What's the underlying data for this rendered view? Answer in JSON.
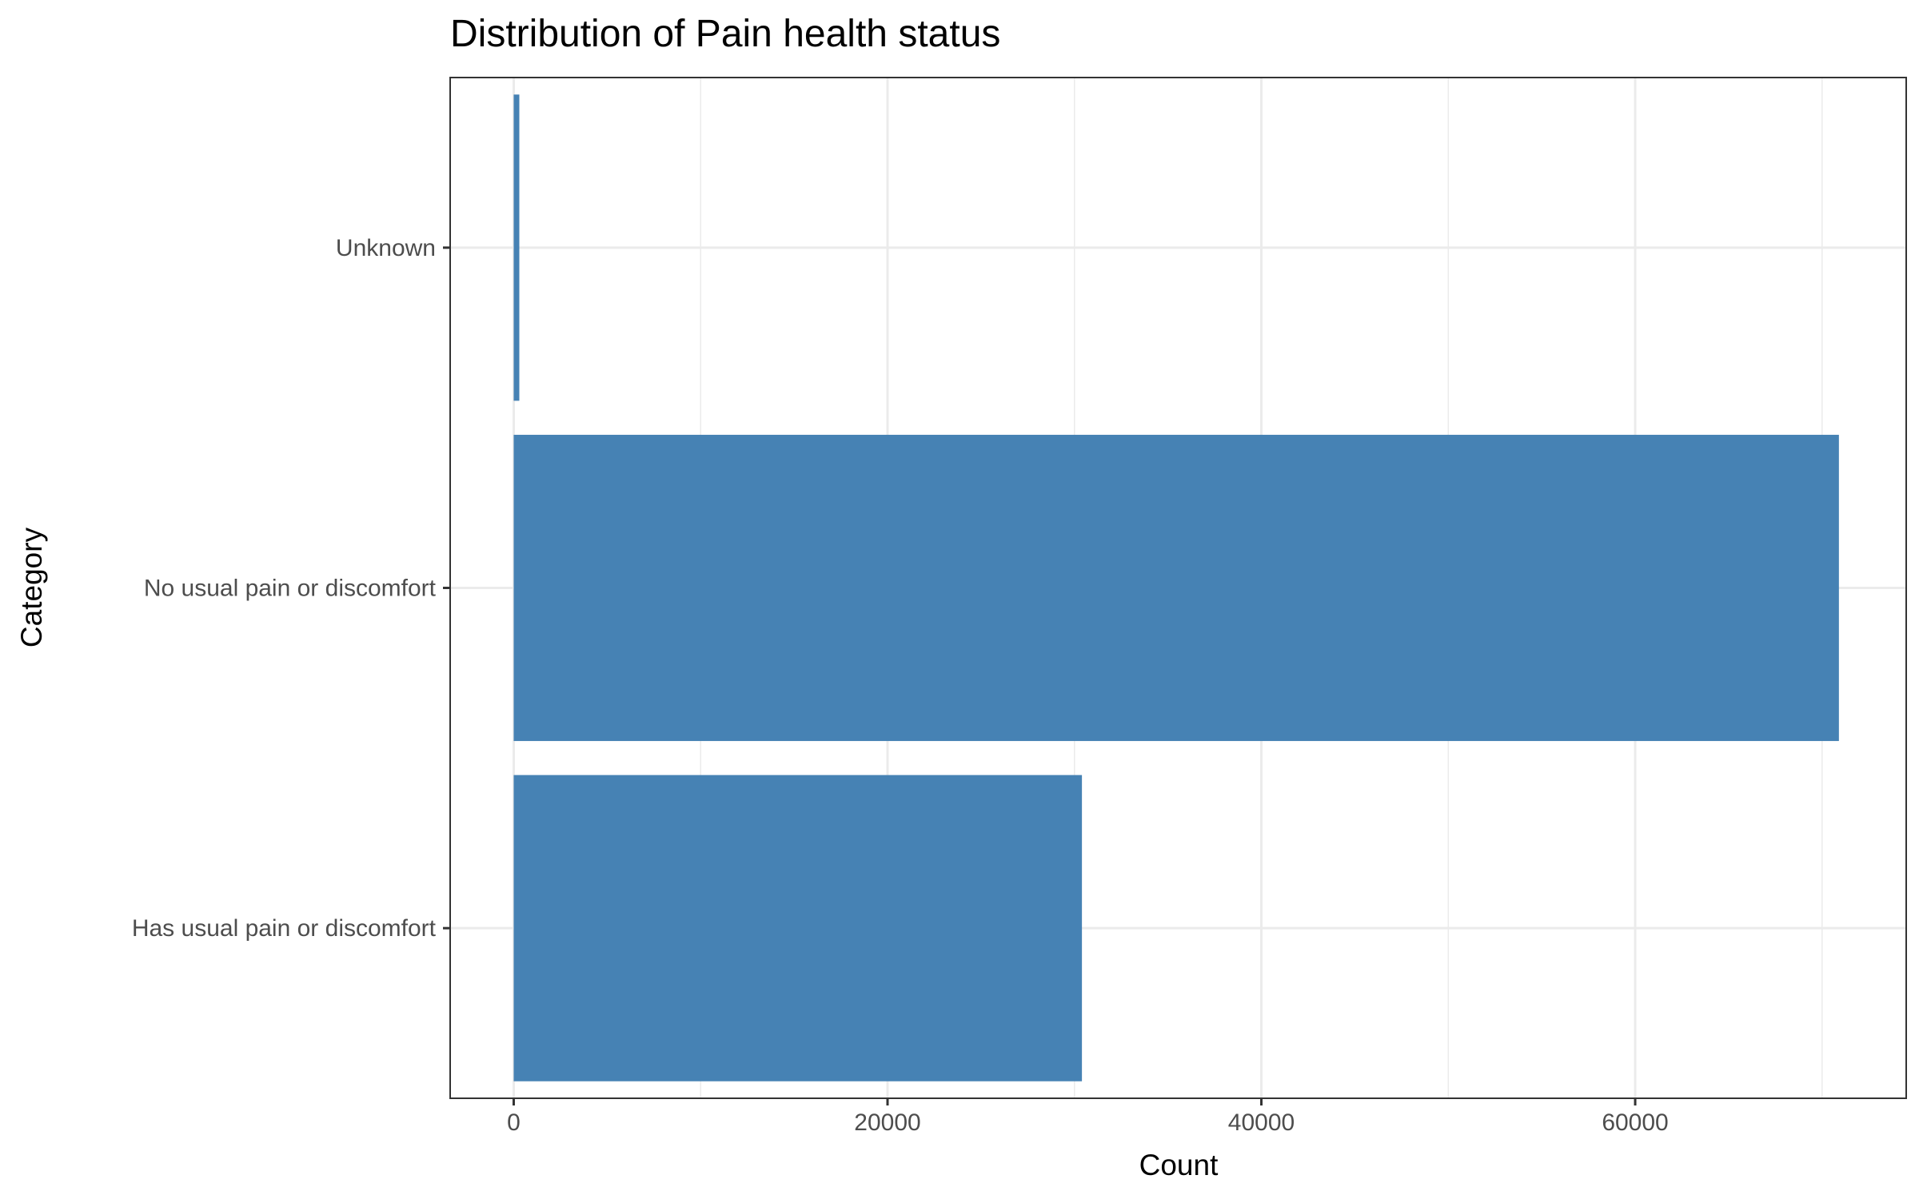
{
  "chart_data": {
    "type": "bar",
    "orientation": "horizontal",
    "title": "Distribution of Pain health status",
    "xlabel": "Count",
    "ylabel": "Category",
    "categories": [
      "Has usual pain or discomfort",
      "No usual pain or discomfort",
      "Unknown"
    ],
    "values": [
      30400,
      70900,
      300
    ],
    "xlim": [
      -3400,
      74500
    ],
    "xticks": [
      0,
      20000,
      40000,
      60000
    ],
    "xtick_labels": [
      "0",
      "20000",
      "40000",
      "60000"
    ],
    "grid": true,
    "legend": "none",
    "bar_color": "#4682B4",
    "panel_border_color": "#333333",
    "grid_color": "#EBEBEB"
  }
}
